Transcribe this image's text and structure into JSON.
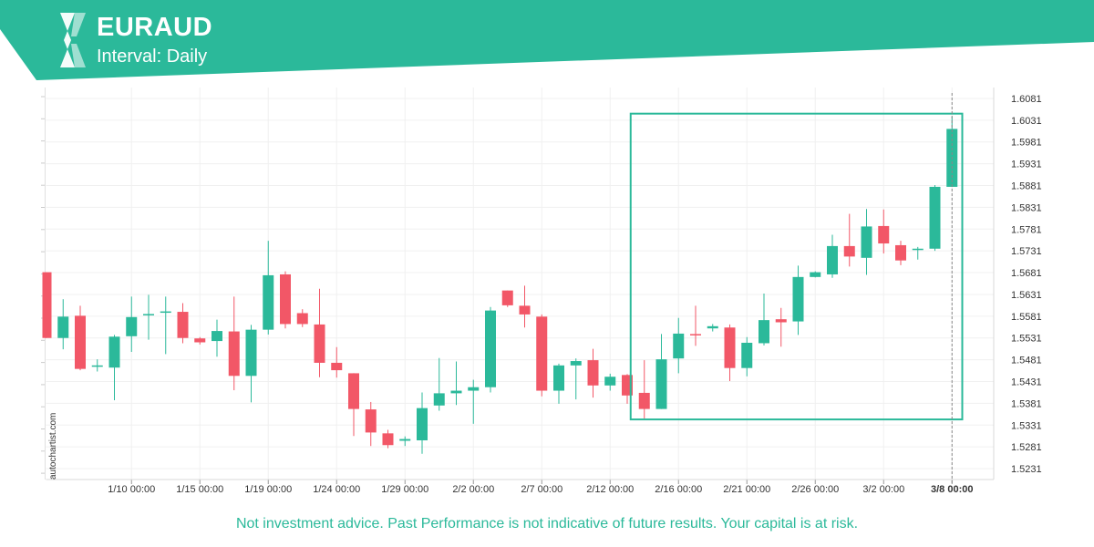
{
  "header": {
    "title": "EURAUD",
    "subtitle": "Interval: Daily",
    "brand_color": "#2bb99a"
  },
  "watermark": "autochartist.com",
  "disclaimer": "Not investment advice. Past Performance is not indicative of future results. Your capital is at risk.",
  "chart_data": {
    "type": "candlestick",
    "up_color": "#2bb99a",
    "down_color": "#f25767",
    "highlight_color": "#2bb99a",
    "grid": true,
    "ylim": [
      1.5206,
      1.6106
    ],
    "y_ticks": [
      "1.6081",
      "1.6031",
      "1.5981",
      "1.5931",
      "1.5881",
      "1.5831",
      "1.5781",
      "1.5731",
      "1.5681",
      "1.5631",
      "1.5581",
      "1.5531",
      "1.5481",
      "1.5431",
      "1.5381",
      "1.5331",
      "1.5281",
      "1.5231"
    ],
    "x_ticks": [
      {
        "label": "1/10 00:00",
        "index": 5
      },
      {
        "label": "1/15 00:00",
        "index": 9
      },
      {
        "label": "1/19 00:00",
        "index": 13
      },
      {
        "label": "1/24 00:00",
        "index": 17
      },
      {
        "label": "1/29 00:00",
        "index": 21
      },
      {
        "label": "2/2 00:00",
        "index": 25
      },
      {
        "label": "2/7 00:00",
        "index": 29
      },
      {
        "label": "2/12 00:00",
        "index": 33
      },
      {
        "label": "2/16 00:00",
        "index": 37
      },
      {
        "label": "2/21 00:00",
        "index": 41
      },
      {
        "label": "2/26 00:00",
        "index": 45
      },
      {
        "label": "3/2 00:00",
        "index": 49
      },
      {
        "label": "3/8 00:00",
        "index": 53,
        "emphasis": true
      }
    ],
    "current_index": 53,
    "highlight_box": {
      "start_index": 34.2,
      "end_index": 53.6,
      "low": 1.5344,
      "high": 1.6046
    },
    "candles": [
      {
        "o": 1.5682,
        "h": 1.5682,
        "l": 1.5531,
        "c": 1.5531
      },
      {
        "o": 1.5531,
        "h": 1.562,
        "l": 1.5505,
        "c": 1.558
      },
      {
        "o": 1.5582,
        "h": 1.5605,
        "l": 1.5457,
        "c": 1.546
      },
      {
        "o": 1.5466,
        "h": 1.5482,
        "l": 1.5454,
        "c": 1.5468
      },
      {
        "o": 1.5463,
        "h": 1.5538,
        "l": 1.5388,
        "c": 1.5534
      },
      {
        "o": 1.5535,
        "h": 1.5626,
        "l": 1.5499,
        "c": 1.5579
      },
      {
        "o": 1.5584,
        "h": 1.563,
        "l": 1.5527,
        "c": 1.5586
      },
      {
        "o": 1.559,
        "h": 1.5626,
        "l": 1.5494,
        "c": 1.5592
      },
      {
        "o": 1.5591,
        "h": 1.5611,
        "l": 1.5519,
        "c": 1.5531
      },
      {
        "o": 1.553,
        "h": 1.5533,
        "l": 1.5516,
        "c": 1.5521
      },
      {
        "o": 1.5524,
        "h": 1.5573,
        "l": 1.5488,
        "c": 1.5547
      },
      {
        "o": 1.5546,
        "h": 1.5626,
        "l": 1.5411,
        "c": 1.5444
      },
      {
        "o": 1.5444,
        "h": 1.5561,
        "l": 1.5383,
        "c": 1.555
      },
      {
        "o": 1.555,
        "h": 1.5754,
        "l": 1.5539,
        "c": 1.5675
      },
      {
        "o": 1.5677,
        "h": 1.5684,
        "l": 1.5553,
        "c": 1.5563
      },
      {
        "o": 1.5588,
        "h": 1.5597,
        "l": 1.5556,
        "c": 1.5563
      },
      {
        "o": 1.5562,
        "h": 1.5644,
        "l": 1.5441,
        "c": 1.5474
      },
      {
        "o": 1.5474,
        "h": 1.551,
        "l": 1.544,
        "c": 1.5457
      },
      {
        "o": 1.545,
        "h": 1.545,
        "l": 1.5306,
        "c": 1.5368
      },
      {
        "o": 1.5367,
        "h": 1.5384,
        "l": 1.5283,
        "c": 1.5314
      },
      {
        "o": 1.5312,
        "h": 1.532,
        "l": 1.5278,
        "c": 1.5285
      },
      {
        "o": 1.5295,
        "h": 1.5305,
        "l": 1.5283,
        "c": 1.5299
      },
      {
        "o": 1.5296,
        "h": 1.5406,
        "l": 1.5265,
        "c": 1.537
      },
      {
        "o": 1.5376,
        "h": 1.5485,
        "l": 1.5364,
        "c": 1.5404
      },
      {
        "o": 1.5404,
        "h": 1.5477,
        "l": 1.5377,
        "c": 1.541
      },
      {
        "o": 1.541,
        "h": 1.5435,
        "l": 1.5334,
        "c": 1.5418
      },
      {
        "o": 1.5418,
        "h": 1.5602,
        "l": 1.5406,
        "c": 1.5594
      },
      {
        "o": 1.564,
        "h": 1.564,
        "l": 1.5602,
        "c": 1.5606
      },
      {
        "o": 1.5605,
        "h": 1.5651,
        "l": 1.5555,
        "c": 1.5585
      },
      {
        "o": 1.558,
        "h": 1.5585,
        "l": 1.5397,
        "c": 1.541
      },
      {
        "o": 1.541,
        "h": 1.5472,
        "l": 1.538,
        "c": 1.5468
      },
      {
        "o": 1.5468,
        "h": 1.5484,
        "l": 1.539,
        "c": 1.5478
      },
      {
        "o": 1.548,
        "h": 1.5506,
        "l": 1.5394,
        "c": 1.5422
      },
      {
        "o": 1.5422,
        "h": 1.5449,
        "l": 1.541,
        "c": 1.5442
      },
      {
        "o": 1.5446,
        "h": 1.5448,
        "l": 1.538,
        "c": 1.5399
      },
      {
        "o": 1.5405,
        "h": 1.548,
        "l": 1.5346,
        "c": 1.5368
      },
      {
        "o": 1.5368,
        "h": 1.554,
        "l": 1.5368,
        "c": 1.5482
      },
      {
        "o": 1.5484,
        "h": 1.5577,
        "l": 1.545,
        "c": 1.5541
      },
      {
        "o": 1.554,
        "h": 1.5605,
        "l": 1.5513,
        "c": 1.5538
      },
      {
        "o": 1.5553,
        "h": 1.5563,
        "l": 1.5546,
        "c": 1.5558
      },
      {
        "o": 1.5555,
        "h": 1.5562,
        "l": 1.5432,
        "c": 1.5462
      },
      {
        "o": 1.5462,
        "h": 1.5533,
        "l": 1.5443,
        "c": 1.552
      },
      {
        "o": 1.5519,
        "h": 1.5633,
        "l": 1.5514,
        "c": 1.5572
      },
      {
        "o": 1.5574,
        "h": 1.56,
        "l": 1.5511,
        "c": 1.5567
      },
      {
        "o": 1.5569,
        "h": 1.5697,
        "l": 1.5538,
        "c": 1.5671
      },
      {
        "o": 1.5671,
        "h": 1.5684,
        "l": 1.567,
        "c": 1.5682
      },
      {
        "o": 1.5677,
        "h": 1.5768,
        "l": 1.5669,
        "c": 1.5742
      },
      {
        "o": 1.5742,
        "h": 1.5816,
        "l": 1.5695,
        "c": 1.5718
      },
      {
        "o": 1.5715,
        "h": 1.5827,
        "l": 1.5676,
        "c": 1.5787
      },
      {
        "o": 1.5788,
        "h": 1.5826,
        "l": 1.5725,
        "c": 1.5748
      },
      {
        "o": 1.5744,
        "h": 1.5754,
        "l": 1.5698,
        "c": 1.5709
      },
      {
        "o": 1.5734,
        "h": 1.574,
        "l": 1.5711,
        "c": 1.5736
      },
      {
        "o": 1.5736,
        "h": 1.5882,
        "l": 1.5731,
        "c": 1.5878
      },
      {
        "o": 1.5878,
        "h": 1.6039,
        "l": 1.5878,
        "c": 1.6011
      }
    ]
  }
}
